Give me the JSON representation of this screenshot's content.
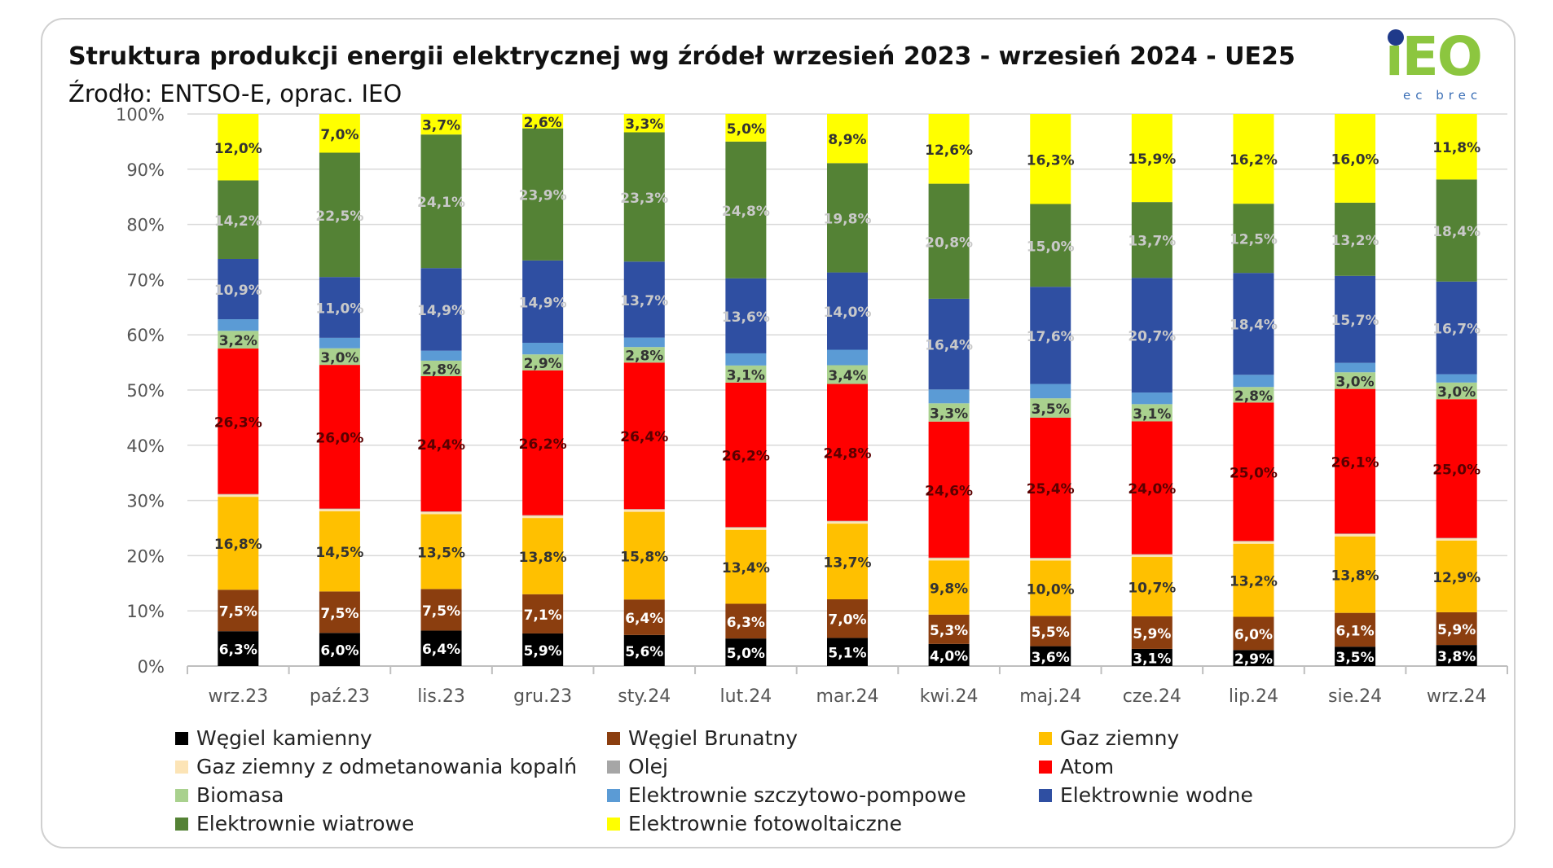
{
  "header": {
    "title": "Struktura produkcji energii elektrycznej wg źródeł wrzesień 2023 - wrzesień 2024  - UE25",
    "subtitle": "Źrodło: ENTSO-E, oprac. IEO"
  },
  "logo": {
    "main": "iEO",
    "sub": "ec brec",
    "colors": {
      "main": "#8cc63f",
      "dot": "#1f3a8a",
      "sub": "#3b6fb6"
    }
  },
  "chart_data": {
    "type": "bar",
    "stacked": "percent",
    "title": "Struktura produkcji energii elektrycznej wg źródeł wrzesień 2023 - wrzesień 2024  - UE25",
    "xlabel": "",
    "ylabel": "",
    "ylim": [
      0,
      100
    ],
    "y_ticks": [
      "0%",
      "10%",
      "20%",
      "30%",
      "40%",
      "50%",
      "60%",
      "70%",
      "80%",
      "90%",
      "100%"
    ],
    "grid": true,
    "legend_position": "bottom",
    "categories": [
      "wrz.23",
      "paź.23",
      "lis.23",
      "gru.23",
      "sty.24",
      "lut.24",
      "mar.24",
      "kwi.24",
      "maj.24",
      "cze.24",
      "lip.24",
      "sie.24",
      "wrz.24"
    ],
    "series": [
      {
        "name": "Węgiel kamienny",
        "color": "#000000",
        "label_color": "#ffffff",
        "values": [
          6.3,
          6.0,
          6.4,
          5.9,
          5.6,
          5.0,
          5.1,
          4.0,
          3.6,
          3.1,
          2.9,
          3.5,
          3.8
        ],
        "labels": [
          "6,3%",
          "6,0%",
          "6,4%",
          "5,9%",
          "5,6%",
          "5,0%",
          "5,1%",
          "4,0%",
          "3,6%",
          "3,1%",
          "2,9%",
          "3,5%",
          "3,8%"
        ]
      },
      {
        "name": "Węgiel Brunatny",
        "color": "#8b3e0f",
        "label_color": "#ffffff",
        "values": [
          7.5,
          7.5,
          7.5,
          7.1,
          6.4,
          6.3,
          7.0,
          5.3,
          5.5,
          5.9,
          6.0,
          6.1,
          5.9
        ],
        "labels": [
          "7,5%",
          "7,5%",
          "7,5%",
          "7,1%",
          "6,4%",
          "6,3%",
          "7,0%",
          "5,3%",
          "5,5%",
          "5,9%",
          "6,0%",
          "6,1%",
          "5,9%"
        ]
      },
      {
        "name": "Gaz ziemny",
        "color": "#ffc000",
        "label_color": "#333333",
        "values": [
          16.8,
          14.5,
          13.5,
          13.8,
          15.8,
          13.4,
          13.7,
          9.8,
          10.0,
          10.7,
          13.2,
          13.8,
          12.9
        ],
        "labels": [
          "16,8%",
          "14,5%",
          "13,5%",
          "13,8%",
          "15,8%",
          "13,4%",
          "13,7%",
          "9,8%",
          "10,0%",
          "10,7%",
          "13,2%",
          "13,8%",
          "12,9%"
        ]
      },
      {
        "name": "Gaz ziemny z odmetanowania kopalń",
        "color": "#fce4b6",
        "label_color": "#333333",
        "values": [
          0.4,
          0.4,
          0.4,
          0.4,
          0.4,
          0.4,
          0.4,
          0.4,
          0.4,
          0.4,
          0.4,
          0.4,
          0.4
        ],
        "labels": []
      },
      {
        "name": "Olej",
        "color": "#a6a6a6",
        "label_color": "#333333",
        "values": [
          0.1,
          0.1,
          0.1,
          0.1,
          0.1,
          0.1,
          0.1,
          0.1,
          0.1,
          0.1,
          0.1,
          0.1,
          0.1
        ],
        "labels": []
      },
      {
        "name": "Atom",
        "color": "#ff0000",
        "label_color": "#5a0000",
        "values": [
          26.3,
          26.0,
          24.4,
          26.2,
          26.4,
          26.2,
          24.8,
          24.6,
          25.4,
          24.0,
          25.0,
          26.1,
          25.0
        ],
        "labels": [
          "26,3%",
          "26,0%",
          "24,4%",
          "26,2%",
          "26,4%",
          "26,2%",
          "24,8%",
          "24,6%",
          "25,4%",
          "24,0%",
          "25,0%",
          "26,1%",
          "25,0%"
        ]
      },
      {
        "name": "Biomasa",
        "color": "#a9d18e",
        "label_color": "#333333",
        "values": [
          3.2,
          3.0,
          2.8,
          2.9,
          2.8,
          3.1,
          3.4,
          3.3,
          3.5,
          3.1,
          2.8,
          3.0,
          3.0
        ],
        "labels": [
          "3,2%",
          "3,0%",
          "2,8%",
          "2,9%",
          "2,8%",
          "3,1%",
          "3,4%",
          "3,3%",
          "3,5%",
          "3,1%",
          "2,8%",
          "3,0%",
          "3,0%"
        ]
      },
      {
        "name": "Elektrownie szczytowo-pompowe",
        "color": "#5b9bd5",
        "label_color": "#333333",
        "values": [
          2.1,
          1.9,
          1.8,
          2.1,
          1.7,
          2.2,
          2.8,
          2.5,
          2.6,
          2.1,
          2.2,
          1.7,
          1.5
        ],
        "labels": []
      },
      {
        "name": "Elektrownie wodne",
        "color": "#2f4fa2",
        "label_color": "#c9c9c9",
        "values": [
          10.9,
          11.0,
          14.9,
          14.9,
          13.7,
          13.6,
          14.0,
          16.4,
          17.6,
          20.7,
          18.4,
          15.7,
          16.7
        ],
        "labels": [
          "10,9%",
          "11,0%",
          "14,9%",
          "14,9%",
          "13,7%",
          "13,6%",
          "14,0%",
          "16,4%",
          "17,6%",
          "20,7%",
          "18,4%",
          "15,7%",
          "16,7%"
        ]
      },
      {
        "name": "Elektrownie wiatrowe",
        "color": "#548235",
        "label_color": "#c9c9c9",
        "values": [
          14.2,
          22.5,
          24.1,
          23.9,
          23.3,
          24.8,
          19.8,
          20.8,
          15.0,
          13.7,
          12.5,
          13.2,
          18.4
        ],
        "labels": [
          "14,2%",
          "22,5%",
          "24,1%",
          "23,9%",
          "23,3%",
          "24,8%",
          "19,8%",
          "20,8%",
          "15,0%",
          "13,7%",
          "12,5%",
          "13,2%",
          "18,4%"
        ]
      },
      {
        "name": "Elektrownie fotowoltaiczne",
        "color": "#ffff00",
        "label_color": "#333333",
        "values": [
          12.0,
          7.0,
          3.7,
          2.6,
          3.3,
          5.0,
          8.9,
          12.6,
          16.3,
          15.9,
          16.2,
          16.0,
          11.8
        ],
        "labels": [
          "12,0%",
          "7,0%",
          "3,7%",
          "2,6%",
          "3,3%",
          "5,0%",
          "8,9%",
          "12,6%",
          "16,3%",
          "15,9%",
          "16,2%",
          "16,0%",
          "11,8%"
        ]
      }
    ]
  }
}
